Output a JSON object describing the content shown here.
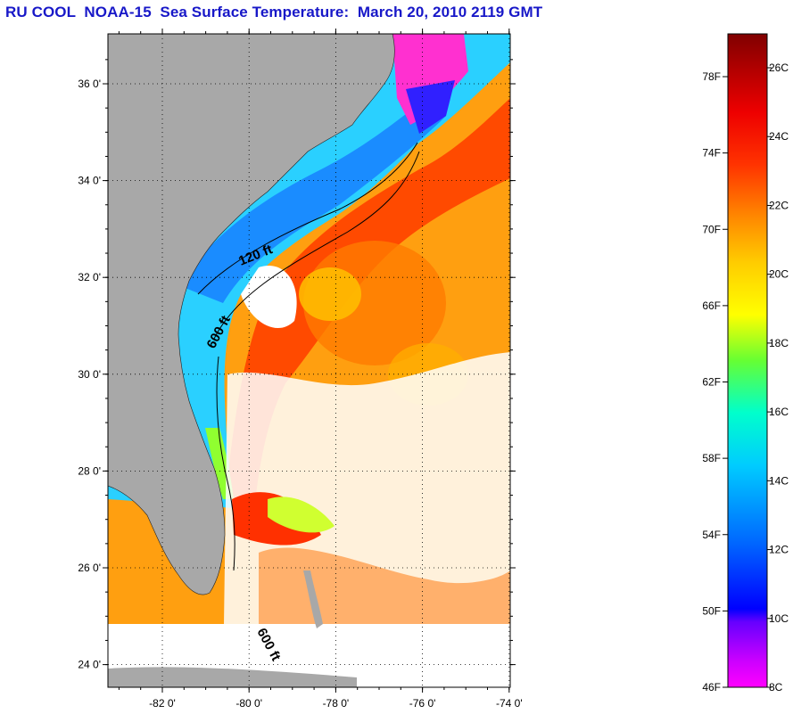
{
  "title": "RU COOL  NOAA-15  Sea Surface Temperature:  March 20, 2010 2119 GMT",
  "map": {
    "lat_ticks": [
      {
        "value": 36,
        "label": "36 0'"
      },
      {
        "value": 34,
        "label": "34 0'"
      },
      {
        "value": 32,
        "label": "32 0'"
      },
      {
        "value": 30,
        "label": "30 0'"
      },
      {
        "value": 28,
        "label": "28 0'"
      },
      {
        "value": 26,
        "label": "26 0'"
      },
      {
        "value": 24,
        "label": "24 0'"
      }
    ],
    "lon_ticks": [
      {
        "value": -82,
        "label": "-82 0'"
      },
      {
        "value": -80,
        "label": "-80 0'"
      },
      {
        "value": -78,
        "label": "-78 0'"
      },
      {
        "value": -76,
        "label": "-76 0'"
      },
      {
        "value": -74,
        "label": "-74 0'"
      }
    ],
    "depth_labels": {
      "isobath_120": "120 ft",
      "isobath_600_north": "600 ft",
      "isobath_600_south": "600 ft"
    },
    "colors": {
      "land": "#a8a8a8",
      "cloud": "#ffffff",
      "coast_cold": "#1e90ff",
      "shelf": "#33ccff",
      "gulf_stream": "#ff3300",
      "open_ocean": "#ff9900"
    }
  },
  "colorbar": {
    "fahrenheit": [
      "78F",
      "74F",
      "70F",
      "66F",
      "62F",
      "58F",
      "54F",
      "50F",
      "46F"
    ],
    "celsius": [
      "26C",
      "24C",
      "22C",
      "20C",
      "18C",
      "16C",
      "14C",
      "12C",
      "10C",
      "8C"
    ],
    "stops": [
      "#ff00ff",
      "#9900ff",
      "#0000ff",
      "#0066ff",
      "#00ccff",
      "#00ffcc",
      "#66ff33",
      "#ffff00",
      "#ffcc00",
      "#ff8800",
      "#ff3300",
      "#ee0000",
      "#aa0000",
      "#800000"
    ]
  }
}
